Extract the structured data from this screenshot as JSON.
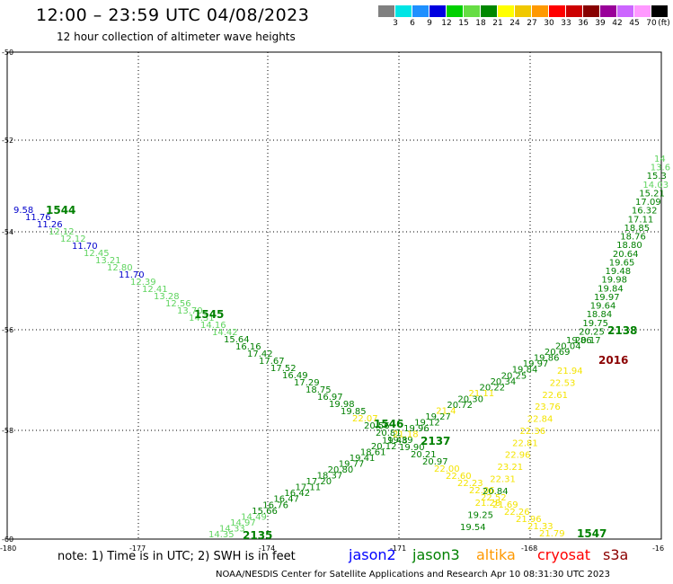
{
  "header": {
    "title": "12:00 – 23:59 UTC 04/08/2023",
    "subtitle": "12 hour collection of altimeter wave heights"
  },
  "colorscale": {
    "unit_label": "(ft)",
    "bins": [
      {
        "label": "3",
        "color": "#808080"
      },
      {
        "label": "6",
        "color": "#00e5e5"
      },
      {
        "label": "9",
        "color": "#1e90ff"
      },
      {
        "label": "12",
        "color": "#0000e0"
      },
      {
        "label": "15",
        "color": "#00d000"
      },
      {
        "label": "18",
        "color": "#66dd44"
      },
      {
        "label": "21",
        "color": "#008800"
      },
      {
        "label": "24",
        "color": "#ffff00"
      },
      {
        "label": "27",
        "color": "#f0c800"
      },
      {
        "label": "30",
        "color": "#ff9900"
      },
      {
        "label": "33",
        "color": "#ff0000"
      },
      {
        "label": "36",
        "color": "#cc0000"
      },
      {
        "label": "39",
        "color": "#880000"
      },
      {
        "label": "42",
        "color": "#990099"
      },
      {
        "label": "45",
        "color": "#cc66ff"
      },
      {
        "label": "70",
        "color": "#ff99ff"
      },
      {
        "label": "",
        "color": "#000000"
      }
    ]
  },
  "map": {
    "lat_ticks": [
      "-50",
      "-52",
      "-54",
      "-56",
      "-58",
      "-60"
    ],
    "lon_ticks": [
      "-180",
      "-177",
      "-174",
      "-171",
      "-168",
      "-16"
    ],
    "colors": {
      "blue": "#0000cc",
      "lgreen": "#5fd45f",
      "dgreen": "#008000",
      "yellow": "#f4e400",
      "orange": "#ff9900",
      "darkred": "#8b0000"
    },
    "passes": [
      {
        "label": "1544",
        "color": "dgreen"
      },
      {
        "label": "1545",
        "color": "dgreen"
      },
      {
        "label": "1546",
        "color": "dgreen"
      },
      {
        "label": "1547",
        "color": "dgreen"
      },
      {
        "label": "2135",
        "color": "dgreen"
      },
      {
        "label": "2137",
        "color": "dgreen"
      },
      {
        "label": "2138",
        "color": "dgreen"
      },
      {
        "label": "2016",
        "color": "darkred"
      }
    ],
    "track_a": [
      {
        "v": "9.58",
        "c": "blue"
      },
      {
        "v": "11.76",
        "c": "blue"
      },
      {
        "v": "11.26",
        "c": "blue"
      },
      {
        "v": "12.12",
        "c": "lgreen"
      },
      {
        "v": "12.12",
        "c": "lgreen"
      },
      {
        "v": "11.70",
        "c": "blue"
      },
      {
        "v": "12.45",
        "c": "lgreen"
      },
      {
        "v": "13.21",
        "c": "lgreen"
      },
      {
        "v": "12.80",
        "c": "lgreen"
      },
      {
        "v": "11.70",
        "c": "blue"
      },
      {
        "v": "12.39",
        "c": "lgreen"
      },
      {
        "v": "12.41",
        "c": "lgreen"
      },
      {
        "v": "13.28",
        "c": "lgreen"
      },
      {
        "v": "12.56",
        "c": "lgreen"
      },
      {
        "v": "13.70",
        "c": "lgreen"
      },
      {
        "v": "14.31",
        "c": "lgreen"
      },
      {
        "v": "14.16",
        "c": "lgreen"
      },
      {
        "v": "14.42",
        "c": "lgreen"
      },
      {
        "v": "15.64",
        "c": "dgreen"
      },
      {
        "v": "16.16",
        "c": "dgreen"
      },
      {
        "v": "17.42",
        "c": "dgreen"
      },
      {
        "v": "17.67",
        "c": "dgreen"
      },
      {
        "v": "17.52",
        "c": "dgreen"
      },
      {
        "v": "16.49",
        "c": "dgreen"
      },
      {
        "v": "17.29",
        "c": "dgreen"
      },
      {
        "v": "18.75",
        "c": "dgreen"
      },
      {
        "v": "16.97",
        "c": "dgreen"
      },
      {
        "v": "19.98",
        "c": "dgreen"
      },
      {
        "v": "19.85",
        "c": "dgreen"
      },
      {
        "v": "22.07",
        "c": "yellow"
      },
      {
        "v": "20.56",
        "c": "dgreen"
      },
      {
        "v": "20.81",
        "c": "dgreen"
      },
      {
        "v": "19.39",
        "c": "dgreen"
      },
      {
        "v": "19.90",
        "c": "dgreen"
      },
      {
        "v": "20.21",
        "c": "dgreen"
      },
      {
        "v": "20.97",
        "c": "dgreen"
      },
      {
        "v": "22.00",
        "c": "yellow"
      },
      {
        "v": "22.60",
        "c": "yellow"
      },
      {
        "v": "22.23",
        "c": "yellow"
      },
      {
        "v": "22.06",
        "c": "yellow"
      },
      {
        "v": "22.52",
        "c": "yellow"
      },
      {
        "v": "21.69",
        "c": "yellow"
      },
      {
        "v": "22.26",
        "c": "yellow"
      },
      {
        "v": "21.96",
        "c": "yellow"
      },
      {
        "v": "21.33",
        "c": "yellow"
      },
      {
        "v": "21.79",
        "c": "yellow"
      }
    ],
    "track_b": [
      {
        "v": "14.35",
        "c": "lgreen"
      },
      {
        "v": "14.33",
        "c": "lgreen"
      },
      {
        "v": "14.97",
        "c": "lgreen"
      },
      {
        "v": "14.49",
        "c": "lgreen"
      },
      {
        "v": "15.66",
        "c": "dgreen"
      },
      {
        "v": "16.76",
        "c": "dgreen"
      },
      {
        "v": "16.47",
        "c": "dgreen"
      },
      {
        "v": "16.42",
        "c": "dgreen"
      },
      {
        "v": "17.11",
        "c": "dgreen"
      },
      {
        "v": "17.20",
        "c": "dgreen"
      },
      {
        "v": "18.37",
        "c": "dgreen"
      },
      {
        "v": "20.80",
        "c": "dgreen"
      },
      {
        "v": "19.77",
        "c": "dgreen"
      },
      {
        "v": "19.41",
        "c": "dgreen"
      },
      {
        "v": "18.61",
        "c": "dgreen"
      },
      {
        "v": "20.12",
        "c": "dgreen"
      },
      {
        "v": "19.48",
        "c": "dgreen"
      },
      {
        "v": "21.18",
        "c": "yellow"
      },
      {
        "v": "19.96",
        "c": "dgreen"
      },
      {
        "v": "19.12",
        "c": "dgreen"
      },
      {
        "v": "19.27",
        "c": "dgreen"
      },
      {
        "v": "21.4",
        "c": "yellow"
      },
      {
        "v": "20.72",
        "c": "dgreen"
      },
      {
        "v": "20.30",
        "c": "dgreen"
      },
      {
        "v": "21.11",
        "c": "yellow"
      },
      {
        "v": "20.22",
        "c": "dgreen"
      },
      {
        "v": "20.34",
        "c": "dgreen"
      },
      {
        "v": "20.25",
        "c": "dgreen"
      },
      {
        "v": "19.84",
        "c": "dgreen"
      },
      {
        "v": "19.97",
        "c": "dgreen"
      },
      {
        "v": "19.86",
        "c": "dgreen"
      },
      {
        "v": "20.69",
        "c": "dgreen"
      },
      {
        "v": "20.04",
        "c": "dgreen"
      },
      {
        "v": "19.86",
        "c": "dgreen"
      }
    ],
    "track_c": [
      {
        "v": "14",
        "c": "lgreen"
      },
      {
        "v": "13.6",
        "c": "lgreen"
      },
      {
        "v": "15.3",
        "c": "dgreen"
      },
      {
        "v": "14.03",
        "c": "lgreen"
      },
      {
        "v": "15.21",
        "c": "dgreen"
      },
      {
        "v": "17.09",
        "c": "dgreen"
      },
      {
        "v": "16.32",
        "c": "dgreen"
      },
      {
        "v": "17.11",
        "c": "dgreen"
      },
      {
        "v": "18.85",
        "c": "dgreen"
      },
      {
        "v": "18.76",
        "c": "dgreen"
      },
      {
        "v": "18.80",
        "c": "dgreen"
      },
      {
        "v": "20.64",
        "c": "dgreen"
      },
      {
        "v": "19.65",
        "c": "dgreen"
      },
      {
        "v": "19.48",
        "c": "dgreen"
      },
      {
        "v": "19.98",
        "c": "dgreen"
      },
      {
        "v": "19.84",
        "c": "dgreen"
      },
      {
        "v": "19.97",
        "c": "dgreen"
      },
      {
        "v": "19.64",
        "c": "dgreen"
      },
      {
        "v": "18.84",
        "c": "dgreen"
      },
      {
        "v": "19.75",
        "c": "dgreen"
      },
      {
        "v": "20.25",
        "c": "dgreen"
      },
      {
        "v": "20.17",
        "c": "dgreen"
      }
    ],
    "track_d": [
      {
        "v": "21.94",
        "c": "yellow"
      },
      {
        "v": "22.53",
        "c": "yellow"
      },
      {
        "v": "22.61",
        "c": "yellow"
      },
      {
        "v": "23.76",
        "c": "yellow"
      },
      {
        "v": "22.84",
        "c": "yellow"
      },
      {
        "v": "22.36",
        "c": "yellow"
      },
      {
        "v": "22.81",
        "c": "yellow"
      },
      {
        "v": "22.96",
        "c": "yellow"
      },
      {
        "v": "23.21",
        "c": "yellow"
      },
      {
        "v": "22.31",
        "c": "yellow"
      },
      {
        "v": "20.84",
        "c": "dgreen"
      },
      {
        "v": "21.28",
        "c": "yellow"
      },
      {
        "v": "19.25",
        "c": "dgreen"
      },
      {
        "v": "19.54",
        "c": "dgreen"
      }
    ]
  },
  "footer": {
    "note": "note: 1) Time is in UTC; 2) SWH is in feet",
    "satellites": [
      {
        "name": "jason2",
        "color": "#0000ff"
      },
      {
        "name": "jason3",
        "color": "#008000"
      },
      {
        "name": "altika",
        "color": "#ff9900"
      },
      {
        "name": "cryosat",
        "color": "#ff0000"
      },
      {
        "name": "s3a",
        "color": "#8b0000"
      }
    ],
    "credit": "NOAA/NESDIS Center for Satellite Applications and Research    Apr 10 08:31:30 UTC 2023"
  }
}
